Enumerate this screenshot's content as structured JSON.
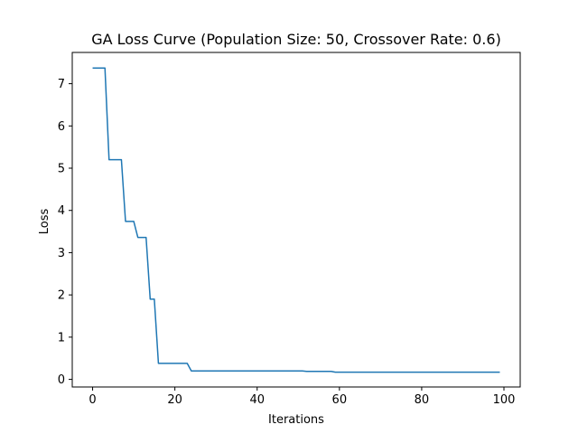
{
  "chart_data": {
    "type": "line",
    "title": "GA Loss Curve (Population Size: 50, Crossover Rate: 0.6)",
    "xlabel": "Iterations",
    "ylabel": "Loss",
    "xlim": [
      -4.95,
      103.95
    ],
    "ylim": [
      -0.18,
      7.74
    ],
    "x_ticks": [
      0,
      20,
      40,
      60,
      80,
      100
    ],
    "y_ticks": [
      0,
      1,
      2,
      3,
      4,
      5,
      6,
      7
    ],
    "grid": false,
    "line_color": "#1f77b4",
    "series": [
      {
        "x": [
          0,
          3,
          4,
          7,
          8,
          10,
          11,
          13,
          14,
          15,
          16,
          23,
          24,
          51,
          52,
          58,
          59,
          99
        ],
        "values": [
          7.37,
          7.37,
          5.2,
          5.2,
          3.74,
          3.74,
          3.36,
          3.36,
          1.9,
          1.9,
          0.38,
          0.38,
          0.2,
          0.2,
          0.19,
          0.19,
          0.17,
          0.17
        ]
      }
    ]
  }
}
